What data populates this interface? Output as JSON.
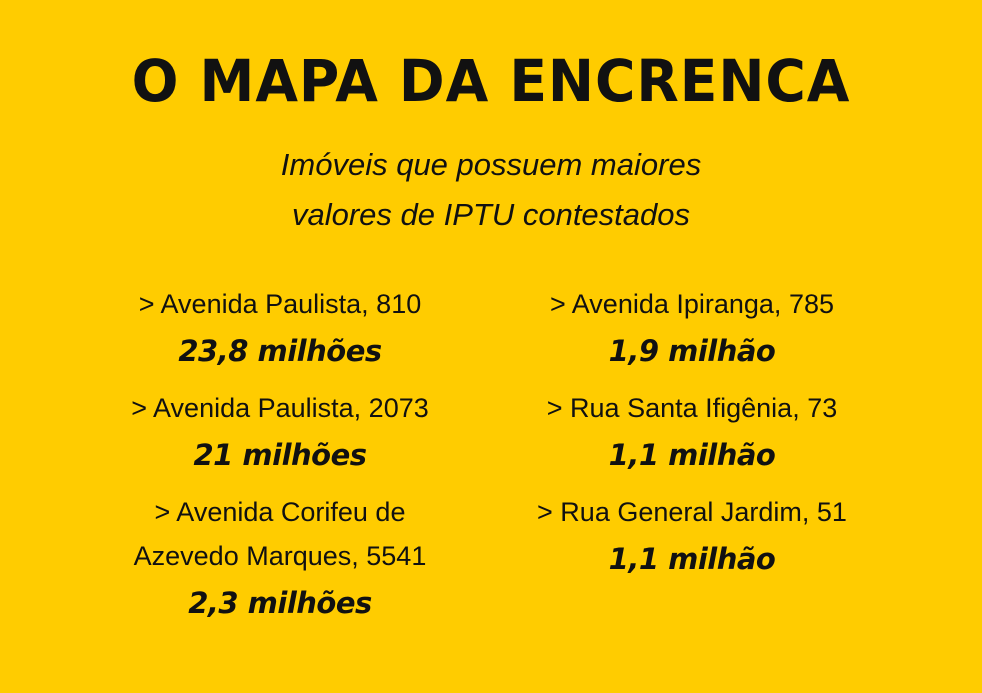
{
  "title": "O MAPA DA ENCRENCA",
  "subtitle": {
    "line1": "Imóveis que possuem maiores",
    "line2": "valores de IPTU contestados"
  },
  "left": [
    {
      "address": "> Avenida Paulista, 810",
      "value": "23,8 milhões"
    },
    {
      "address": "> Avenida Paulista, 2073",
      "value": "21 milhões"
    },
    {
      "address_line1": "> Avenida Corifeu de",
      "address_line2": "Azevedo Marques, 5541",
      "value": "2,3 milhões"
    }
  ],
  "right": [
    {
      "address": "> Avenida Ipiranga, 785",
      "value": "1,9 milhão"
    },
    {
      "address": "> Rua Santa Ifigênia, 73",
      "value": "1,1 milhão"
    },
    {
      "address": "> Rua General Jardim, 51",
      "value": "1,1 milhão"
    }
  ],
  "colors": {
    "background": "#FFCC00",
    "text": "#111111"
  }
}
